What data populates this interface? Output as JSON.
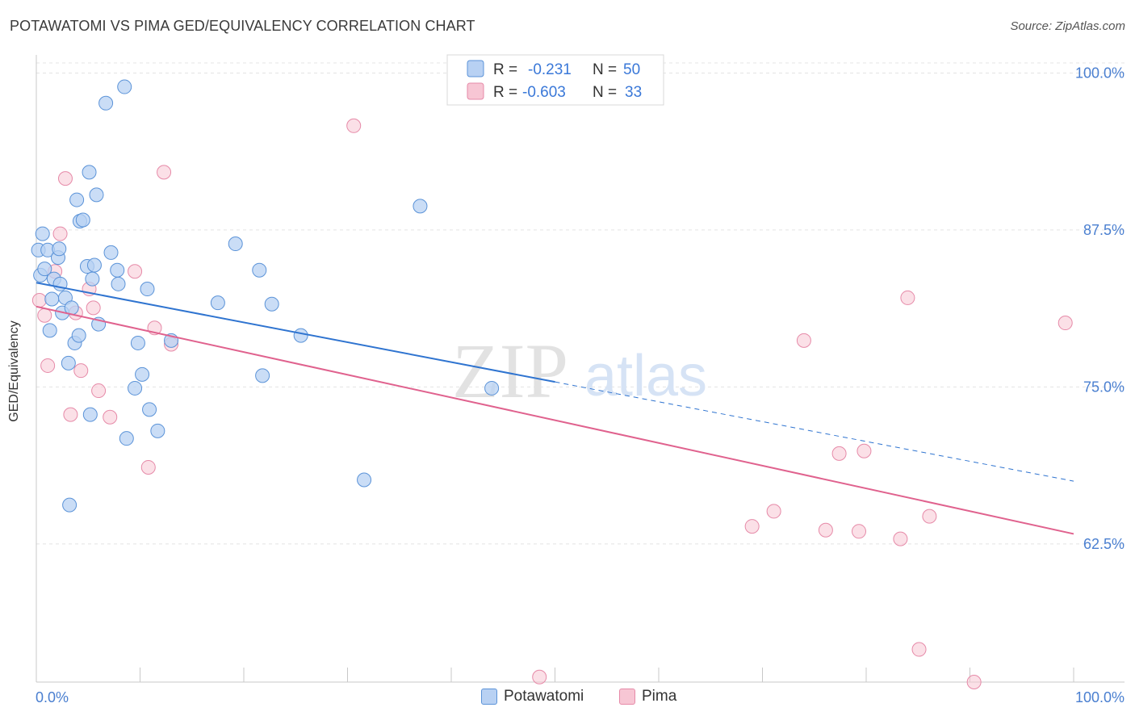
{
  "header": {
    "title": "POTAWATOMI VS PIMA GED/EQUIVALENCY CORRELATION CHART",
    "source": "Source: ZipAtlas.com"
  },
  "watermark": {
    "zip": "ZIP",
    "atlas": "atlas"
  },
  "colors": {
    "potawatomi_fill": "#b8d1f3",
    "potawatomi_stroke": "#5b93d8",
    "potawatomi_line": "#2f74d0",
    "pima_fill": "#f7c6d4",
    "pima_stroke": "#e68aa8",
    "pima_line": "#e0628e",
    "tick_label": "#4a7fd0"
  },
  "legend": {
    "rows": [
      {
        "r_label": "R =",
        "r_value": "-0.231",
        "n_label": "N =",
        "n_value": "50"
      },
      {
        "r_label": "R =",
        "r_value": "-0.603",
        "n_label": "N =",
        "n_value": "33"
      }
    ]
  },
  "bottom_legend": {
    "potawatomi": "Potawatomi",
    "pima": "Pima"
  },
  "chart_data": {
    "type": "scatter",
    "ylabel": "GED/Equivalency",
    "xlim": [
      0,
      100
    ],
    "ylim": [
      51.5,
      100.8
    ],
    "y_ticks": [
      {
        "value": 100,
        "label": "100.0%"
      },
      {
        "value": 87.5,
        "label": "87.5%"
      },
      {
        "value": 75,
        "label": "75.0%"
      },
      {
        "value": 62.5,
        "label": "62.5%"
      }
    ],
    "x_tick_labels": [
      {
        "value": 0,
        "label": "0.0%"
      },
      {
        "value": 100,
        "label": "100.0%"
      }
    ],
    "x_minor_ticks": [
      10,
      20,
      30,
      40,
      50,
      60,
      70,
      80,
      90,
      100
    ],
    "series": [
      {
        "name": "Potawatomi",
        "trend": {
          "x0": 0,
          "y0": 83.3,
          "x1": 50,
          "y1": 75.4,
          "dash_to_x": 100,
          "dash_to_y": 67.5
        },
        "points": [
          [
            0.2,
            85.9
          ],
          [
            0.4,
            83.9
          ],
          [
            0.6,
            87.2
          ],
          [
            0.8,
            84.4
          ],
          [
            1.1,
            85.9
          ],
          [
            1.3,
            79.5
          ],
          [
            1.5,
            82.0
          ],
          [
            1.7,
            83.6
          ],
          [
            2.1,
            85.3
          ],
          [
            2.2,
            86.0
          ],
          [
            2.3,
            83.2
          ],
          [
            2.5,
            80.9
          ],
          [
            2.8,
            82.1
          ],
          [
            3.1,
            76.9
          ],
          [
            3.4,
            81.3
          ],
          [
            3.7,
            78.5
          ],
          [
            3.9,
            89.9
          ],
          [
            4.1,
            79.1
          ],
          [
            4.2,
            88.2
          ],
          [
            4.5,
            88.3
          ],
          [
            4.9,
            84.6
          ],
          [
            5.1,
            92.1
          ],
          [
            5.2,
            72.8
          ],
          [
            5.4,
            83.6
          ],
          [
            5.6,
            84.7
          ],
          [
            5.8,
            90.3
          ],
          [
            6.0,
            80.0
          ],
          [
            6.7,
            97.6
          ],
          [
            7.2,
            85.7
          ],
          [
            7.8,
            84.3
          ],
          [
            7.9,
            83.2
          ],
          [
            8.5,
            98.9
          ],
          [
            8.7,
            70.9
          ],
          [
            9.5,
            74.9
          ],
          [
            9.8,
            78.5
          ],
          [
            10.2,
            76.0
          ],
          [
            10.7,
            82.8
          ],
          [
            10.9,
            73.2
          ],
          [
            11.7,
            71.5
          ],
          [
            13.0,
            78.7
          ],
          [
            17.5,
            81.7
          ],
          [
            19.2,
            86.4
          ],
          [
            21.5,
            84.3
          ],
          [
            21.8,
            75.9
          ],
          [
            22.7,
            81.6
          ],
          [
            25.5,
            79.1
          ],
          [
            31.6,
            67.6
          ],
          [
            37.0,
            89.4
          ],
          [
            43.9,
            74.9
          ],
          [
            3.2,
            65.6
          ]
        ]
      },
      {
        "name": "Pima",
        "trend": {
          "x0": 0,
          "y0": 81.4,
          "x1": 100,
          "y1": 63.3
        },
        "points": [
          [
            0.3,
            81.9
          ],
          [
            0.8,
            80.7
          ],
          [
            1.1,
            76.7
          ],
          [
            1.8,
            84.2
          ],
          [
            2.3,
            87.2
          ],
          [
            2.8,
            91.6
          ],
          [
            3.3,
            72.8
          ],
          [
            3.8,
            80.9
          ],
          [
            4.3,
            76.3
          ],
          [
            5.1,
            82.8
          ],
          [
            5.5,
            81.3
          ],
          [
            6.0,
            74.7
          ],
          [
            7.1,
            72.6
          ],
          [
            9.5,
            84.2
          ],
          [
            10.8,
            68.6
          ],
          [
            11.4,
            79.7
          ],
          [
            12.3,
            92.1
          ],
          [
            13.0,
            78.4
          ],
          [
            30.6,
            95.8
          ],
          [
            48.5,
            51.9
          ],
          [
            69.0,
            63.9
          ],
          [
            71.1,
            65.1
          ],
          [
            74.0,
            78.7
          ],
          [
            76.1,
            63.6
          ],
          [
            77.4,
            69.7
          ],
          [
            79.3,
            63.5
          ],
          [
            79.8,
            69.9
          ],
          [
            83.3,
            62.9
          ],
          [
            84.0,
            82.1
          ],
          [
            85.1,
            54.1
          ],
          [
            86.1,
            64.7
          ],
          [
            90.4,
            51.5
          ],
          [
            99.2,
            80.1
          ]
        ]
      }
    ]
  }
}
